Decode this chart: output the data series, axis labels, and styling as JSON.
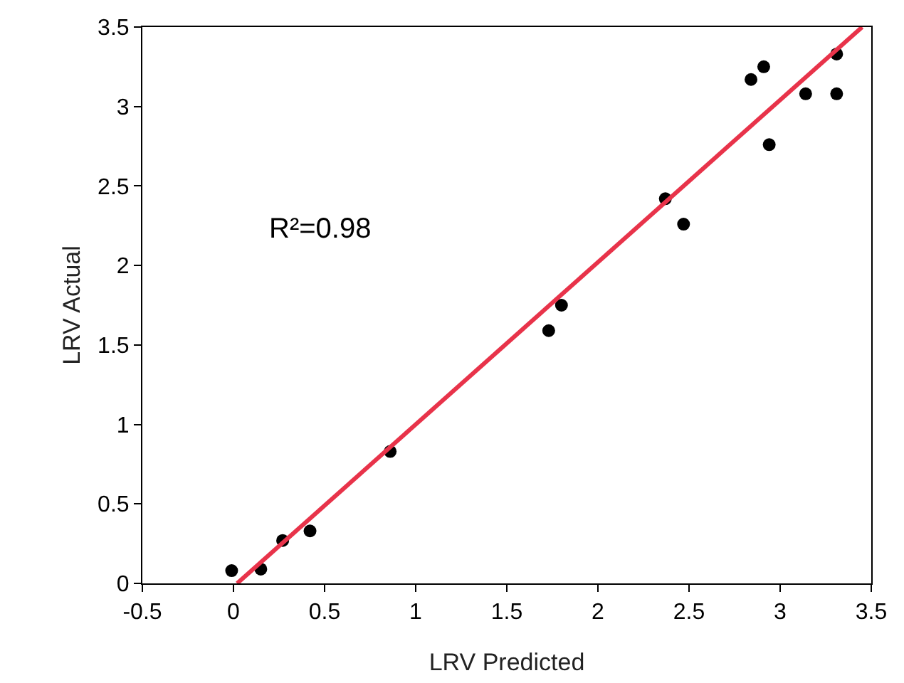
{
  "chart_data": {
    "type": "scatter",
    "xlabel": "LRV Predicted",
    "ylabel": "LRV Actual",
    "annotations": [
      "R²=0.98"
    ],
    "x": [
      -0.01,
      0.15,
      0.27,
      0.42,
      0.86,
      1.73,
      1.8,
      2.37,
      2.47,
      2.84,
      2.91,
      2.94,
      3.14,
      3.31,
      3.31
    ],
    "series": [
      {
        "color": "#000000",
        "marker": "circle",
        "values": [
          0.08,
          0.09,
          0.27,
          0.33,
          0.83,
          1.59,
          1.75,
          2.42,
          2.26,
          3.17,
          3.25,
          2.76,
          3.08,
          3.33,
          3.08
        ]
      },
      {
        "type": "line",
        "color": "#e8334a",
        "x": [
          0.02,
          3.45
        ],
        "values": [
          0,
          3.5
        ],
        "marker": "none",
        "line_style": "solid"
      }
    ],
    "xlim": [
      -0.5,
      3.5
    ],
    "xticks": [
      -0.5,
      0,
      0.5,
      1,
      1.5,
      2,
      2.5,
      3,
      3.5
    ],
    "ylim": [
      0,
      3.5
    ],
    "yticks": [
      0,
      0.5,
      1,
      1.5,
      2,
      2.5,
      3,
      3.5
    ],
    "grid": false
  }
}
